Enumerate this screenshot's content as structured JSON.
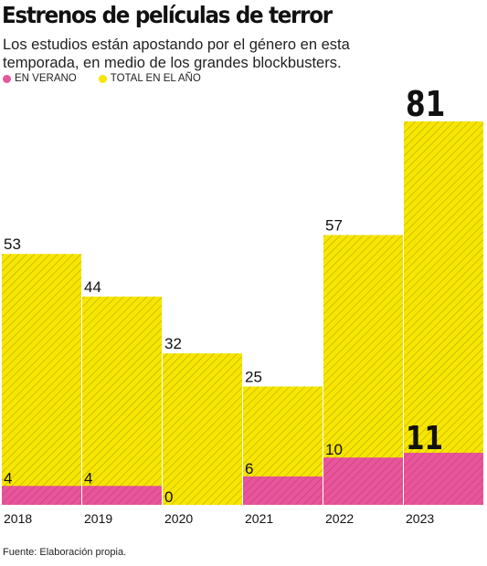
{
  "title": "Estrenos de películas de terror",
  "subtitle": "Los estudios están apostando por el género en esta temporada, en medio de los grandes blockbusters.",
  "legend": {
    "summer_label": "EN VERANO",
    "total_label": "TOTAL EN EL AÑO"
  },
  "source": "Fuente: Elaboración propia.",
  "colors": {
    "summer": "#e8559a",
    "total": "#f7e600",
    "hatch": "#b8a800"
  },
  "chart_data": {
    "type": "bar",
    "categories": [
      "2018",
      "2019",
      "2020",
      "2021",
      "2022",
      "2023"
    ],
    "series": [
      {
        "name": "TOTAL EN EL AÑO",
        "values": [
          53,
          44,
          32,
          25,
          57,
          81
        ]
      },
      {
        "name": "EN VERANO",
        "values": [
          4,
          4,
          0,
          6,
          10,
          11
        ]
      }
    ],
    "highlight_category": "2023",
    "ylim": [
      0,
      81
    ],
    "grid": false,
    "legend_position": "top-left"
  }
}
